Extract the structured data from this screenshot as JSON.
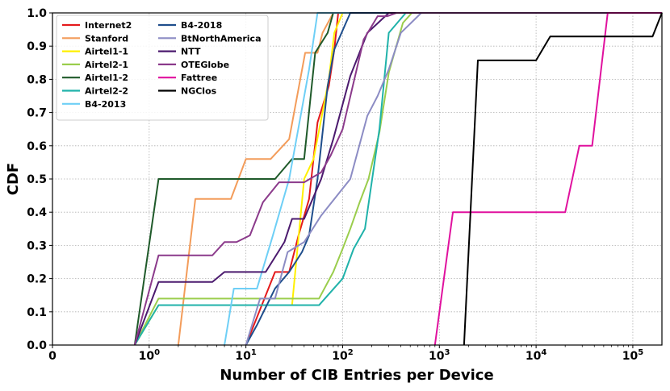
{
  "chart_data": {
    "type": "line",
    "xscale": "symlog",
    "xlabel": "Number of CIB Entries per Device",
    "ylabel": "CDF",
    "xlim": [
      0,
      200000
    ],
    "ylim": [
      0.0,
      1.0
    ],
    "grid": true,
    "legend_position": "top-left",
    "x_tick_labels": [
      {
        "value": 0,
        "base": "0",
        "exp": ""
      },
      {
        "value": 1,
        "base": "10",
        "exp": "0"
      },
      {
        "value": 10,
        "base": "10",
        "exp": "1"
      },
      {
        "value": 100,
        "base": "10",
        "exp": "2"
      },
      {
        "value": 1000,
        "base": "10",
        "exp": "3"
      },
      {
        "value": 10000,
        "base": "10",
        "exp": "4"
      },
      {
        "value": 100000,
        "base": "10",
        "exp": "5"
      }
    ],
    "y_ticks": [
      0.0,
      0.1,
      0.2,
      0.3,
      0.4,
      0.5,
      0.6,
      0.7,
      0.8,
      0.9,
      1.0
    ],
    "y_tick_labels": [
      "0.0",
      "0.1",
      "0.2",
      "0.3",
      "0.4",
      "0.5",
      "0.6",
      "0.7",
      "0.8",
      "0.9",
      "1.0"
    ],
    "series": [
      {
        "name": "Internet2",
        "color": "#e41a1c",
        "x": [
          10,
          20,
          28,
          35,
          45,
          55,
          72,
          82,
          90,
          100000,
          200000
        ],
        "y": [
          0.0,
          0.22,
          0.22,
          0.33,
          0.44,
          0.67,
          0.78,
          0.89,
          1.0,
          1.0,
          1.0
        ]
      },
      {
        "name": "Stanford",
        "color": "#f39c5a",
        "x": [
          2,
          3,
          7,
          10,
          18,
          28,
          41,
          55,
          62,
          80,
          100000,
          200000
        ],
        "y": [
          0.0,
          0.44,
          0.44,
          0.56,
          0.56,
          0.62,
          0.88,
          0.88,
          0.94,
          1.0,
          1.0,
          1.0
        ]
      },
      {
        "name": "Airtel1-1",
        "color": "#fff000",
        "x": [
          0.85,
          1.25,
          30,
          40,
          50,
          72,
          82,
          100,
          100000,
          200000
        ],
        "y": [
          0.0,
          0.12,
          0.12,
          0.5,
          0.56,
          0.8,
          0.94,
          1.0,
          1.0,
          1.0
        ]
      },
      {
        "name": "Airtel2-1",
        "color": "#9acd4c",
        "x": [
          0.85,
          1.25,
          57,
          80,
          100,
          120,
          150,
          185,
          240,
          300,
          420,
          520,
          100000,
          200000
        ],
        "y": [
          0.0,
          0.14,
          0.14,
          0.22,
          0.29,
          0.35,
          0.43,
          0.5,
          0.64,
          0.82,
          0.97,
          1.0,
          1.0,
          1.0
        ]
      },
      {
        "name": "Airtel1-2",
        "color": "#1f5a2a",
        "x": [
          0.85,
          1.25,
          20,
          30,
          40,
          52,
          70,
          80,
          100000,
          200000
        ],
        "y": [
          0.0,
          0.5,
          0.5,
          0.56,
          0.56,
          0.88,
          0.94,
          1.0,
          1.0,
          1.0
        ]
      },
      {
        "name": "Airtel2-2",
        "color": "#20b2aa",
        "x": [
          0.85,
          1.25,
          57,
          100,
          130,
          170,
          240,
          300,
          450,
          550,
          100000,
          200000
        ],
        "y": [
          0.0,
          0.12,
          0.12,
          0.2,
          0.29,
          0.35,
          0.65,
          0.94,
          1.0,
          1.0,
          1.0,
          1.0
        ]
      },
      {
        "name": "B4-2013",
        "color": "#6ecff6",
        "x": [
          6,
          7.5,
          13,
          19,
          28,
          45,
          55,
          100000,
          200000
        ],
        "y": [
          0.0,
          0.17,
          0.17,
          0.33,
          0.5,
          0.83,
          1.0,
          1.0,
          1.0
        ]
      },
      {
        "name": "B4-2018",
        "color": "#1f4e8c",
        "x": [
          10,
          13,
          20,
          28,
          38,
          45,
          55,
          70,
          82,
          120,
          100000,
          200000
        ],
        "y": [
          0.0,
          0.06,
          0.17,
          0.22,
          0.28,
          0.33,
          0.5,
          0.78,
          0.89,
          1.0,
          1.0,
          1.0
        ]
      },
      {
        "name": "BtNorthAmerica",
        "color": "#8c8cc4",
        "x": [
          10,
          14,
          20,
          27,
          40,
          60,
          120,
          180,
          230,
          300,
          400,
          650,
          100000,
          200000
        ],
        "y": [
          0.0,
          0.14,
          0.14,
          0.28,
          0.31,
          0.39,
          0.5,
          0.69,
          0.75,
          0.83,
          0.94,
          1.0,
          1.0,
          1.0
        ]
      },
      {
        "name": "NTT",
        "color": "#4b1a6e",
        "x": [
          0.85,
          1.25,
          4.5,
          6,
          10,
          16,
          25,
          30,
          40,
          60,
          80,
          120,
          180,
          300,
          100000,
          200000
        ],
        "y": [
          0.0,
          0.19,
          0.19,
          0.22,
          0.22,
          0.22,
          0.31,
          0.38,
          0.38,
          0.5,
          0.62,
          0.81,
          0.94,
          1.0,
          1.0,
          1.0
        ]
      },
      {
        "name": "OTEGlobe",
        "color": "#8b3a8b",
        "x": [
          0.85,
          1.25,
          4.5,
          6,
          8,
          11,
          15,
          22,
          40,
          60,
          75,
          100,
          165,
          230,
          290,
          360,
          100000,
          200000
        ],
        "y": [
          0.0,
          0.27,
          0.27,
          0.31,
          0.31,
          0.33,
          0.43,
          0.49,
          0.49,
          0.52,
          0.57,
          0.65,
          0.92,
          0.99,
          0.99,
          1.0,
          1.0,
          1.0
        ]
      },
      {
        "name": "Fattree",
        "color": "#e0119e",
        "x": [
          900,
          1380,
          20000,
          28000,
          38000,
          55000,
          100000,
          200000
        ],
        "y": [
          0.0,
          0.4,
          0.4,
          0.6,
          0.6,
          1.0,
          1.0,
          1.0
        ]
      },
      {
        "name": "NGClos",
        "color": "#000000",
        "x": [
          1800,
          2500,
          10000,
          14000,
          160000,
          200000
        ],
        "y": [
          0.0,
          0.857,
          0.857,
          0.929,
          0.929,
          1.0
        ]
      }
    ]
  }
}
